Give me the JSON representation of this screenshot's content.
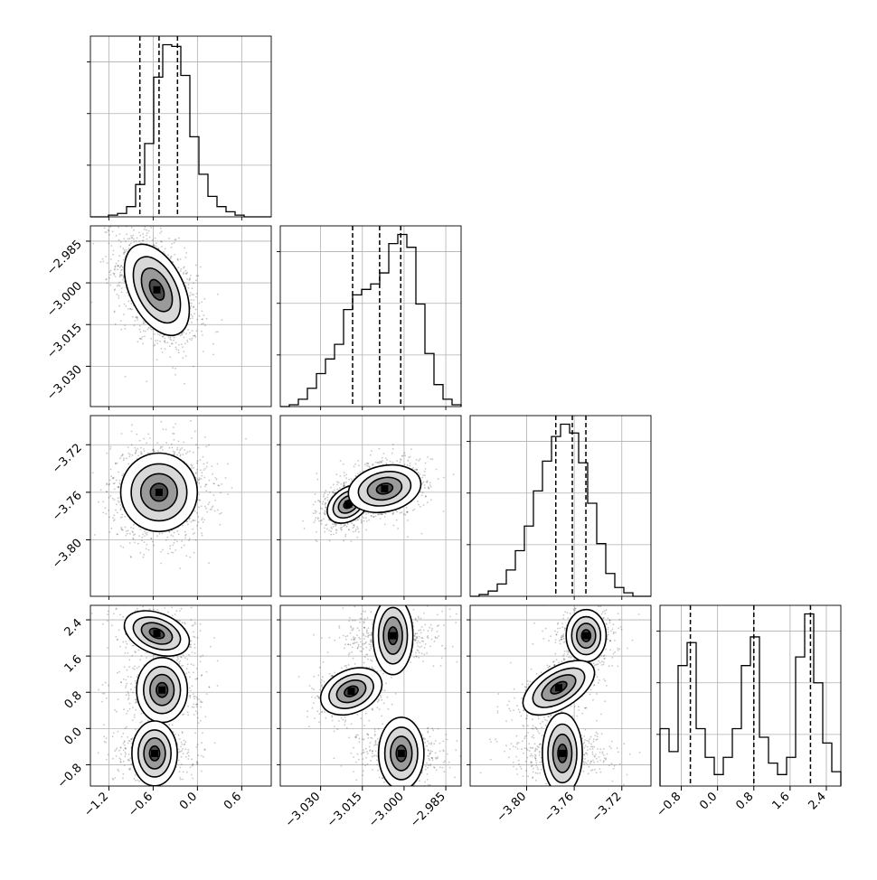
{
  "chart_data": {
    "type": "corner",
    "grid": true,
    "parameters": [
      {
        "range": [
          -1.45,
          1.0
        ],
        "ticks": [
          -1.2,
          -0.6,
          0.0,
          0.6
        ],
        "tick_labels": [
          "−1.2",
          "−0.6",
          "0.0",
          "0.6"
        ],
        "quantiles": [
          -0.78,
          -0.52,
          -0.27
        ],
        "hist_edges_range": [
          -1.45,
          1.0
        ],
        "hist_values": [
          0,
          0,
          1,
          2,
          6,
          19,
          43,
          82,
          101,
          100,
          83,
          47,
          25,
          12,
          6,
          3,
          1,
          0,
          0,
          0
        ],
        "hist_max": 101
      },
      {
        "range": [
          -3.0445,
          -2.9795
        ],
        "ticks": [
          -3.03,
          -3.015,
          -3.0,
          -2.985
        ],
        "tick_labels": [
          "−3.030",
          "−3.015",
          "−3.000",
          "−2.985"
        ],
        "quantiles": [
          -3.0185,
          -3.0088,
          -3.0012
        ],
        "hist_edges_range": [
          -3.0445,
          -2.9795
        ],
        "hist_values": [
          0,
          1,
          4,
          10,
          18,
          26,
          34,
          53,
          61,
          64,
          67,
          73,
          89,
          94,
          87,
          56,
          29,
          12,
          4,
          1
        ],
        "hist_max": 94
      },
      {
        "range": [
          -3.8475,
          -3.6955
        ],
        "ticks": [
          -3.8,
          -3.76,
          -3.72
        ],
        "tick_labels": [
          "−3.80",
          "−3.76",
          "−3.72"
        ],
        "quantiles": [
          -3.7755,
          -3.7616,
          -3.7502
        ],
        "hist_edges_range": [
          -3.8475,
          -3.6955
        ],
        "hist_values": [
          0,
          1,
          3,
          7,
          15,
          26,
          40,
          60,
          77,
          91,
          98,
          93,
          76,
          53,
          30,
          13,
          5,
          2,
          0,
          0
        ],
        "hist_max": 98
      },
      {
        "range": [
          -1.27,
          2.72
        ],
        "ticks": [
          -0.8,
          0.0,
          0.8,
          1.6,
          2.4
        ],
        "tick_labels": [
          "−0.8",
          "0.0",
          "0.8",
          "1.6",
          "2.4"
        ],
        "quantiles": [
          -0.6,
          0.8,
          2.05
        ],
        "hist_edges_range": [
          -1.27,
          2.72
        ],
        "hist_values": [
          20,
          12,
          42,
          50,
          20,
          10,
          4,
          10,
          20,
          42,
          52,
          17,
          8,
          4,
          10,
          45,
          60,
          36,
          15,
          5
        ],
        "hist_max": 60
      }
    ],
    "pairs": [
      {
        "row": 1,
        "col": 0,
        "modes": [
          [
            -0.55,
            -3.0025,
            0.22,
            0.0082,
            -0.45
          ]
        ]
      },
      {
        "row": 2,
        "col": 0,
        "modes": [
          [
            -0.52,
            -3.76,
            0.26,
            0.0165,
            0.0
          ]
        ]
      },
      {
        "row": 2,
        "col": 1,
        "modes": [
          [
            -3.02,
            -3.77,
            0.0038,
            0.008,
            0.35
          ],
          [
            -3.007,
            -3.757,
            0.0065,
            0.01,
            0.2
          ]
        ]
      },
      {
        "row": 3,
        "col": 0,
        "modes": [
          [
            -0.55,
            2.1,
            0.22,
            0.25,
            -0.35
          ],
          [
            -0.48,
            0.85,
            0.22,
            0.28,
            0.0
          ],
          [
            -0.58,
            -0.55,
            0.22,
            0.25,
            0.0
          ]
        ]
      },
      {
        "row": 3,
        "col": 1,
        "modes": [
          [
            -3.004,
            2.05,
            0.007,
            0.22,
            0.0
          ],
          [
            -3.019,
            0.82,
            0.0055,
            0.26,
            0.3
          ],
          [
            -3.001,
            -0.55,
            0.0065,
            0.25,
            0.0
          ]
        ]
      },
      {
        "row": 3,
        "col": 2,
        "modes": [
          [
            -3.75,
            2.05,
            0.011,
            0.22,
            0.0
          ],
          [
            -3.773,
            0.9,
            0.015,
            0.3,
            0.55
          ],
          [
            -3.77,
            -0.55,
            0.017,
            0.22,
            0.0
          ]
        ]
      }
    ]
  }
}
